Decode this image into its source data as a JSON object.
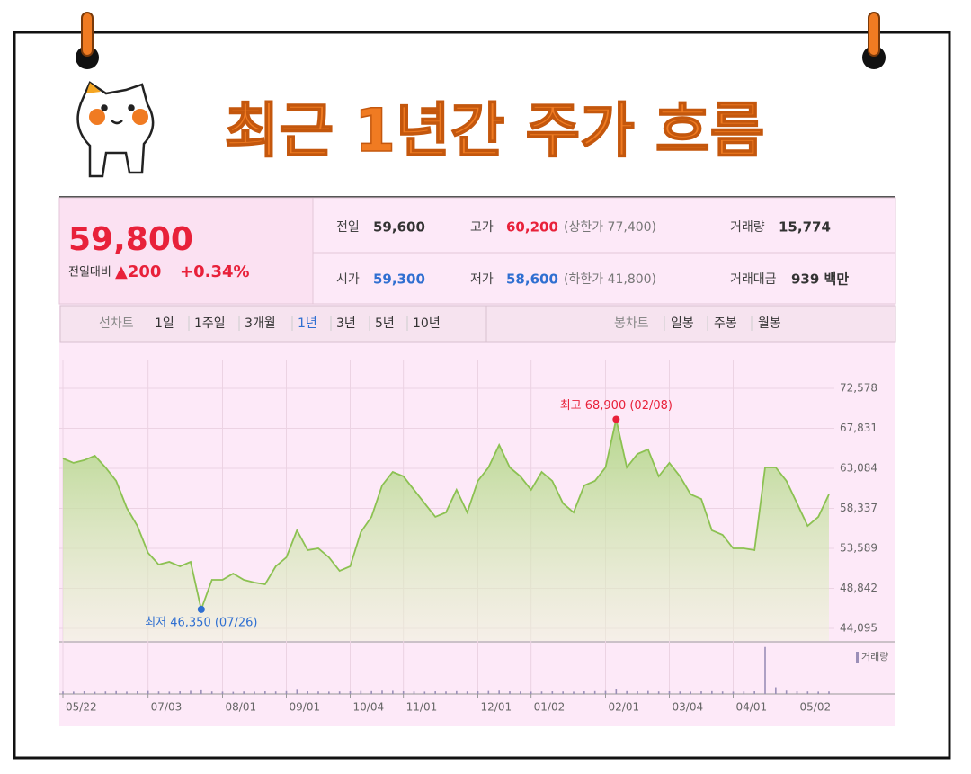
{
  "header": {
    "title": "최근 1년간 주가 흐름"
  },
  "quote": {
    "price": "59,800",
    "change_label": "전일대비",
    "change": "▲200",
    "change_rate": "+0.34%",
    "rows": [
      [
        {
          "label": "전일",
          "value": "59,600"
        },
        {
          "label": "고가",
          "value": "60,200",
          "note": "(상한가 77,400)"
        },
        {
          "label": "거래량",
          "value": "15,774"
        }
      ],
      [
        {
          "label": "시가",
          "value": "59,300"
        },
        {
          "label": "저가",
          "value": "58,600",
          "note": "(하한가 41,800)"
        },
        {
          "label": "거래대금",
          "value": "939 백만"
        }
      ]
    ]
  },
  "tabs": {
    "line_label": "선차트",
    "line_tabs": [
      "1일",
      "1주일",
      "3개월",
      "1년",
      "3년",
      "5년",
      "10년"
    ],
    "candle_label": "봉차트",
    "candle_tabs": [
      "일봉",
      "주봉",
      "월봉"
    ]
  },
  "chart_data": {
    "type": "area",
    "categories": [
      "05/22",
      null,
      null,
      null,
      null,
      null,
      null,
      null,
      "07/03",
      null,
      null,
      null,
      null,
      null,
      null,
      "08/01",
      null,
      null,
      null,
      null,
      null,
      "09/01",
      null,
      null,
      null,
      null,
      null,
      "10/04",
      null,
      null,
      null,
      null,
      "11/01",
      null,
      null,
      null,
      null,
      null,
      null,
      "12/01",
      null,
      null,
      null,
      null,
      "01/02",
      null,
      null,
      null,
      null,
      null,
      null,
      "02/01",
      null,
      null,
      null,
      null,
      null,
      "03/04",
      null,
      null,
      null,
      null,
      null,
      "04/01",
      null,
      null,
      null,
      null,
      null,
      "05/02",
      null,
      null,
      null
    ],
    "series": [
      {
        "name": "주가",
        "color": "#8cc152",
        "values": [
          64260,
          63730,
          64050,
          64580,
          63190,
          61590,
          58390,
          56260,
          53060,
          51670,
          51990,
          51460,
          51990,
          46350,
          49860,
          49860,
          50600,
          49860,
          49540,
          49320,
          51460,
          52520,
          55720,
          53380,
          53590,
          52520,
          50920,
          51460,
          55510,
          57330,
          61060,
          62660,
          62130,
          60530,
          58930,
          57330,
          57860,
          60530,
          57860,
          61590,
          63190,
          65860,
          63190,
          62130,
          60530,
          62660,
          61590,
          58930,
          57860,
          61060,
          61590,
          63190,
          68900,
          63190,
          64790,
          65330,
          62130,
          63730,
          62130,
          60000,
          59460,
          55720,
          55190,
          53590,
          53590,
          53380,
          63190,
          63190,
          61590,
          58930,
          56260,
          57330,
          60000
        ]
      },
      {
        "name": "거래량",
        "color": "#9b8fb8",
        "axis": "volume",
        "values": [
          15000,
          14000,
          16000,
          13000,
          15000,
          17000,
          14000,
          16000,
          18000,
          15000,
          14000,
          16000,
          19000,
          22000,
          15000,
          14000,
          13000,
          15000,
          14000,
          16000,
          15000,
          17000,
          25000,
          16000,
          15000,
          14000,
          15000,
          16000,
          18000,
          17000,
          20000,
          19000,
          16000,
          15000,
          14000,
          16000,
          15000,
          17000,
          15000,
          16000,
          18000,
          20000,
          16000,
          15000,
          14000,
          15000,
          16000,
          15000,
          14000,
          16000,
          17000,
          18000,
          30000,
          17000,
          16000,
          18000,
          15000,
          16000,
          15000,
          14000,
          16000,
          17000,
          15000,
          14000,
          15000,
          16000,
          280000,
          40000,
          20000,
          16000,
          15000,
          14000,
          15000
        ]
      }
    ],
    "ylim": [
      44095,
      72578
    ],
    "yticks": [
      {
        "value": 72578,
        "label": "72,578"
      },
      {
        "value": 67831,
        "label": "67,831"
      },
      {
        "value": 63084,
        "label": "63,084"
      },
      {
        "value": 58337,
        "label": "58,337"
      },
      {
        "value": 53589,
        "label": "53,589"
      },
      {
        "value": 48842,
        "label": "48,842"
      },
      {
        "value": 44095,
        "label": "44,095"
      }
    ],
    "volume_ylim": [
      0,
      300000
    ],
    "grid": true,
    "annotations": [
      {
        "text": "최고 68,900 (02/08)",
        "index": 52,
        "color": "#e8213a"
      },
      {
        "text": "최저 46,350 (07/26)",
        "index": 13,
        "color": "#2f6fd1"
      }
    ]
  }
}
